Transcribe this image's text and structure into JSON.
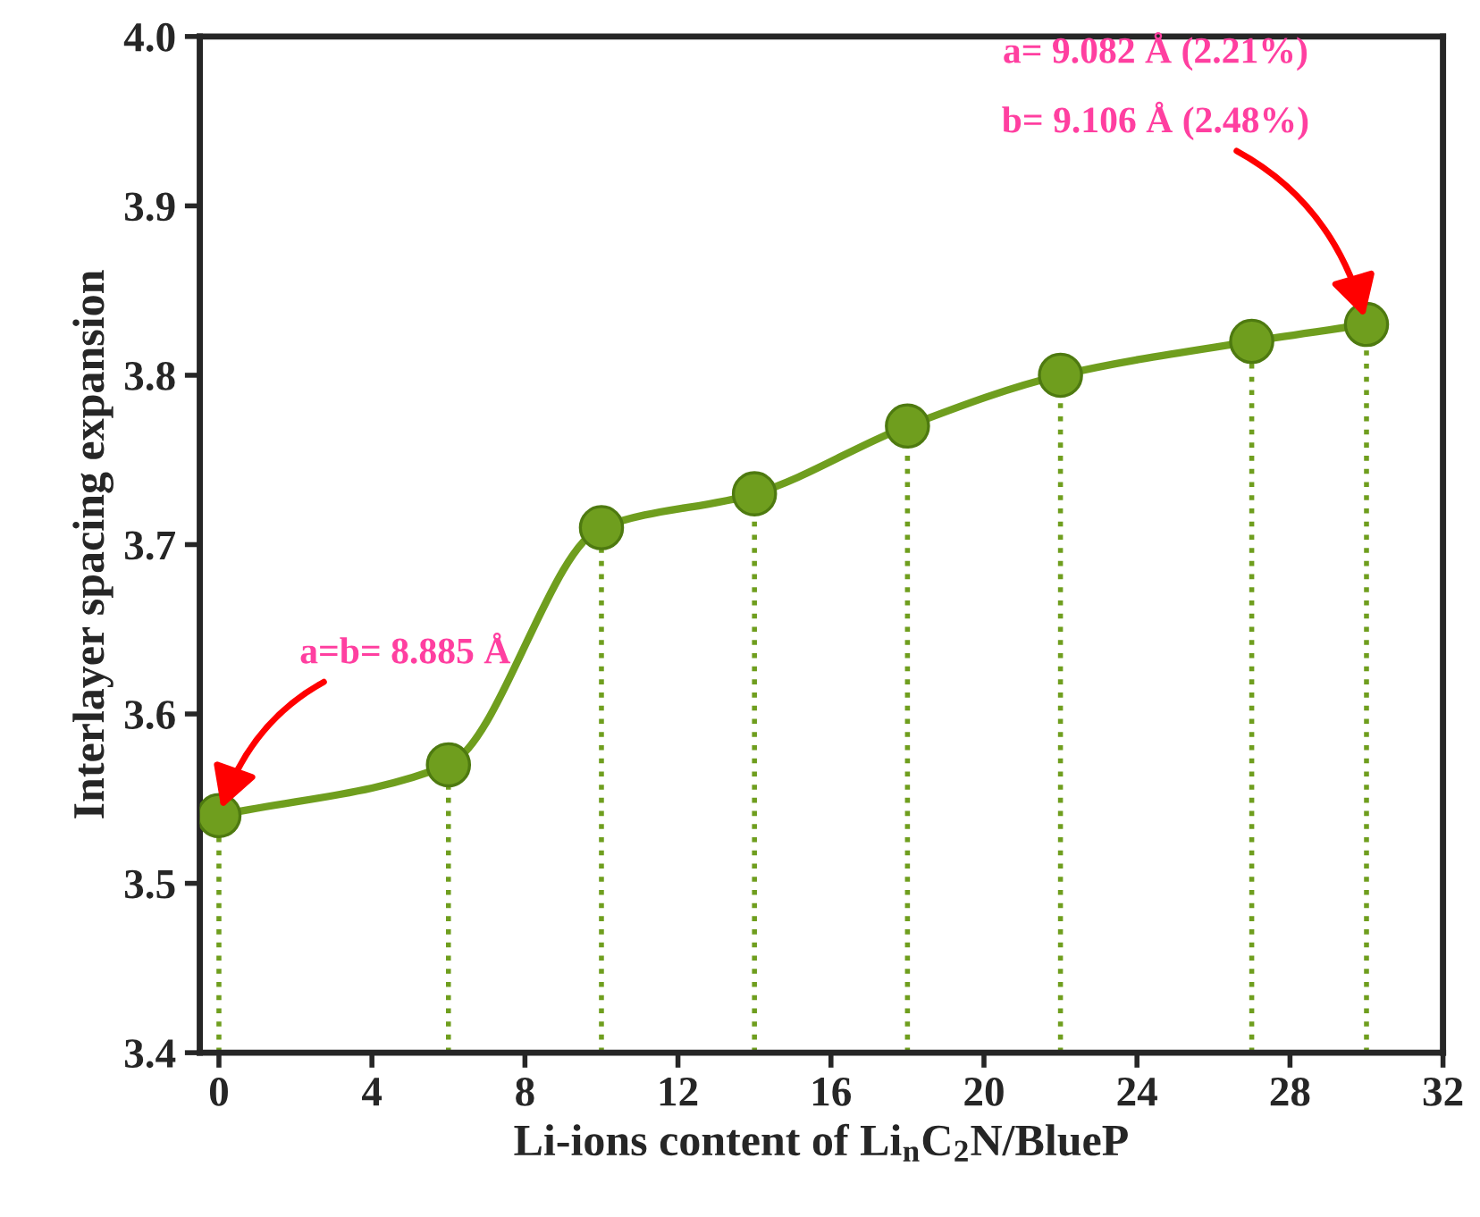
{
  "chart_data": {
    "type": "line",
    "xlabel": "Li-ions content of Li$_{n}$C$_{2}$N/BlueP",
    "ylabel": "Interlayer spacing expansion",
    "x": [
      0,
      6,
      10,
      14,
      18,
      22,
      27,
      30
    ],
    "series": [
      {
        "color": "#6f9e1e",
        "values": [
          3.54,
          3.57,
          3.71,
          3.73,
          3.77,
          3.8,
          3.82,
          3.83
        ]
      },
      {
        "type": "lollipop",
        "color": "#6f9e1e",
        "values": [
          3.54,
          3.57,
          3.71,
          3.73,
          3.77,
          3.8,
          3.82,
          3.83
        ],
        "line_style": "dotted",
        "marker": "circle"
      }
    ],
    "line_style": "solid",
    "grid": false,
    "legend": false,
    "xlim": [
      -0.5,
      32
    ],
    "xticks": [
      0,
      4,
      8,
      12,
      16,
      20,
      24,
      28,
      32
    ],
    "ylim": [
      3.4,
      4.0
    ],
    "yticks": [
      {
        "value": 3.4,
        "label": "3.4"
      },
      {
        "value": 3.5,
        "label": "3.5"
      },
      {
        "value": 3.6,
        "label": "3.6"
      },
      {
        "value": 3.7,
        "label": "3.7"
      },
      {
        "value": 3.8,
        "label": "3.8"
      },
      {
        "value": 3.9,
        "label": "3.9"
      },
      {
        "value": 4.0,
        "label": "4.0"
      }
    ],
    "annotations": [
      {
        "text": "a=b= 8.885 Å",
        "x": 0,
        "y": 3.54
      },
      "a= 9.082 Å (2.21%)",
      {
        "text": "b= 9.106 Å (2.48%)",
        "x": 30,
        "y": 3.83
      }
    ]
  }
}
